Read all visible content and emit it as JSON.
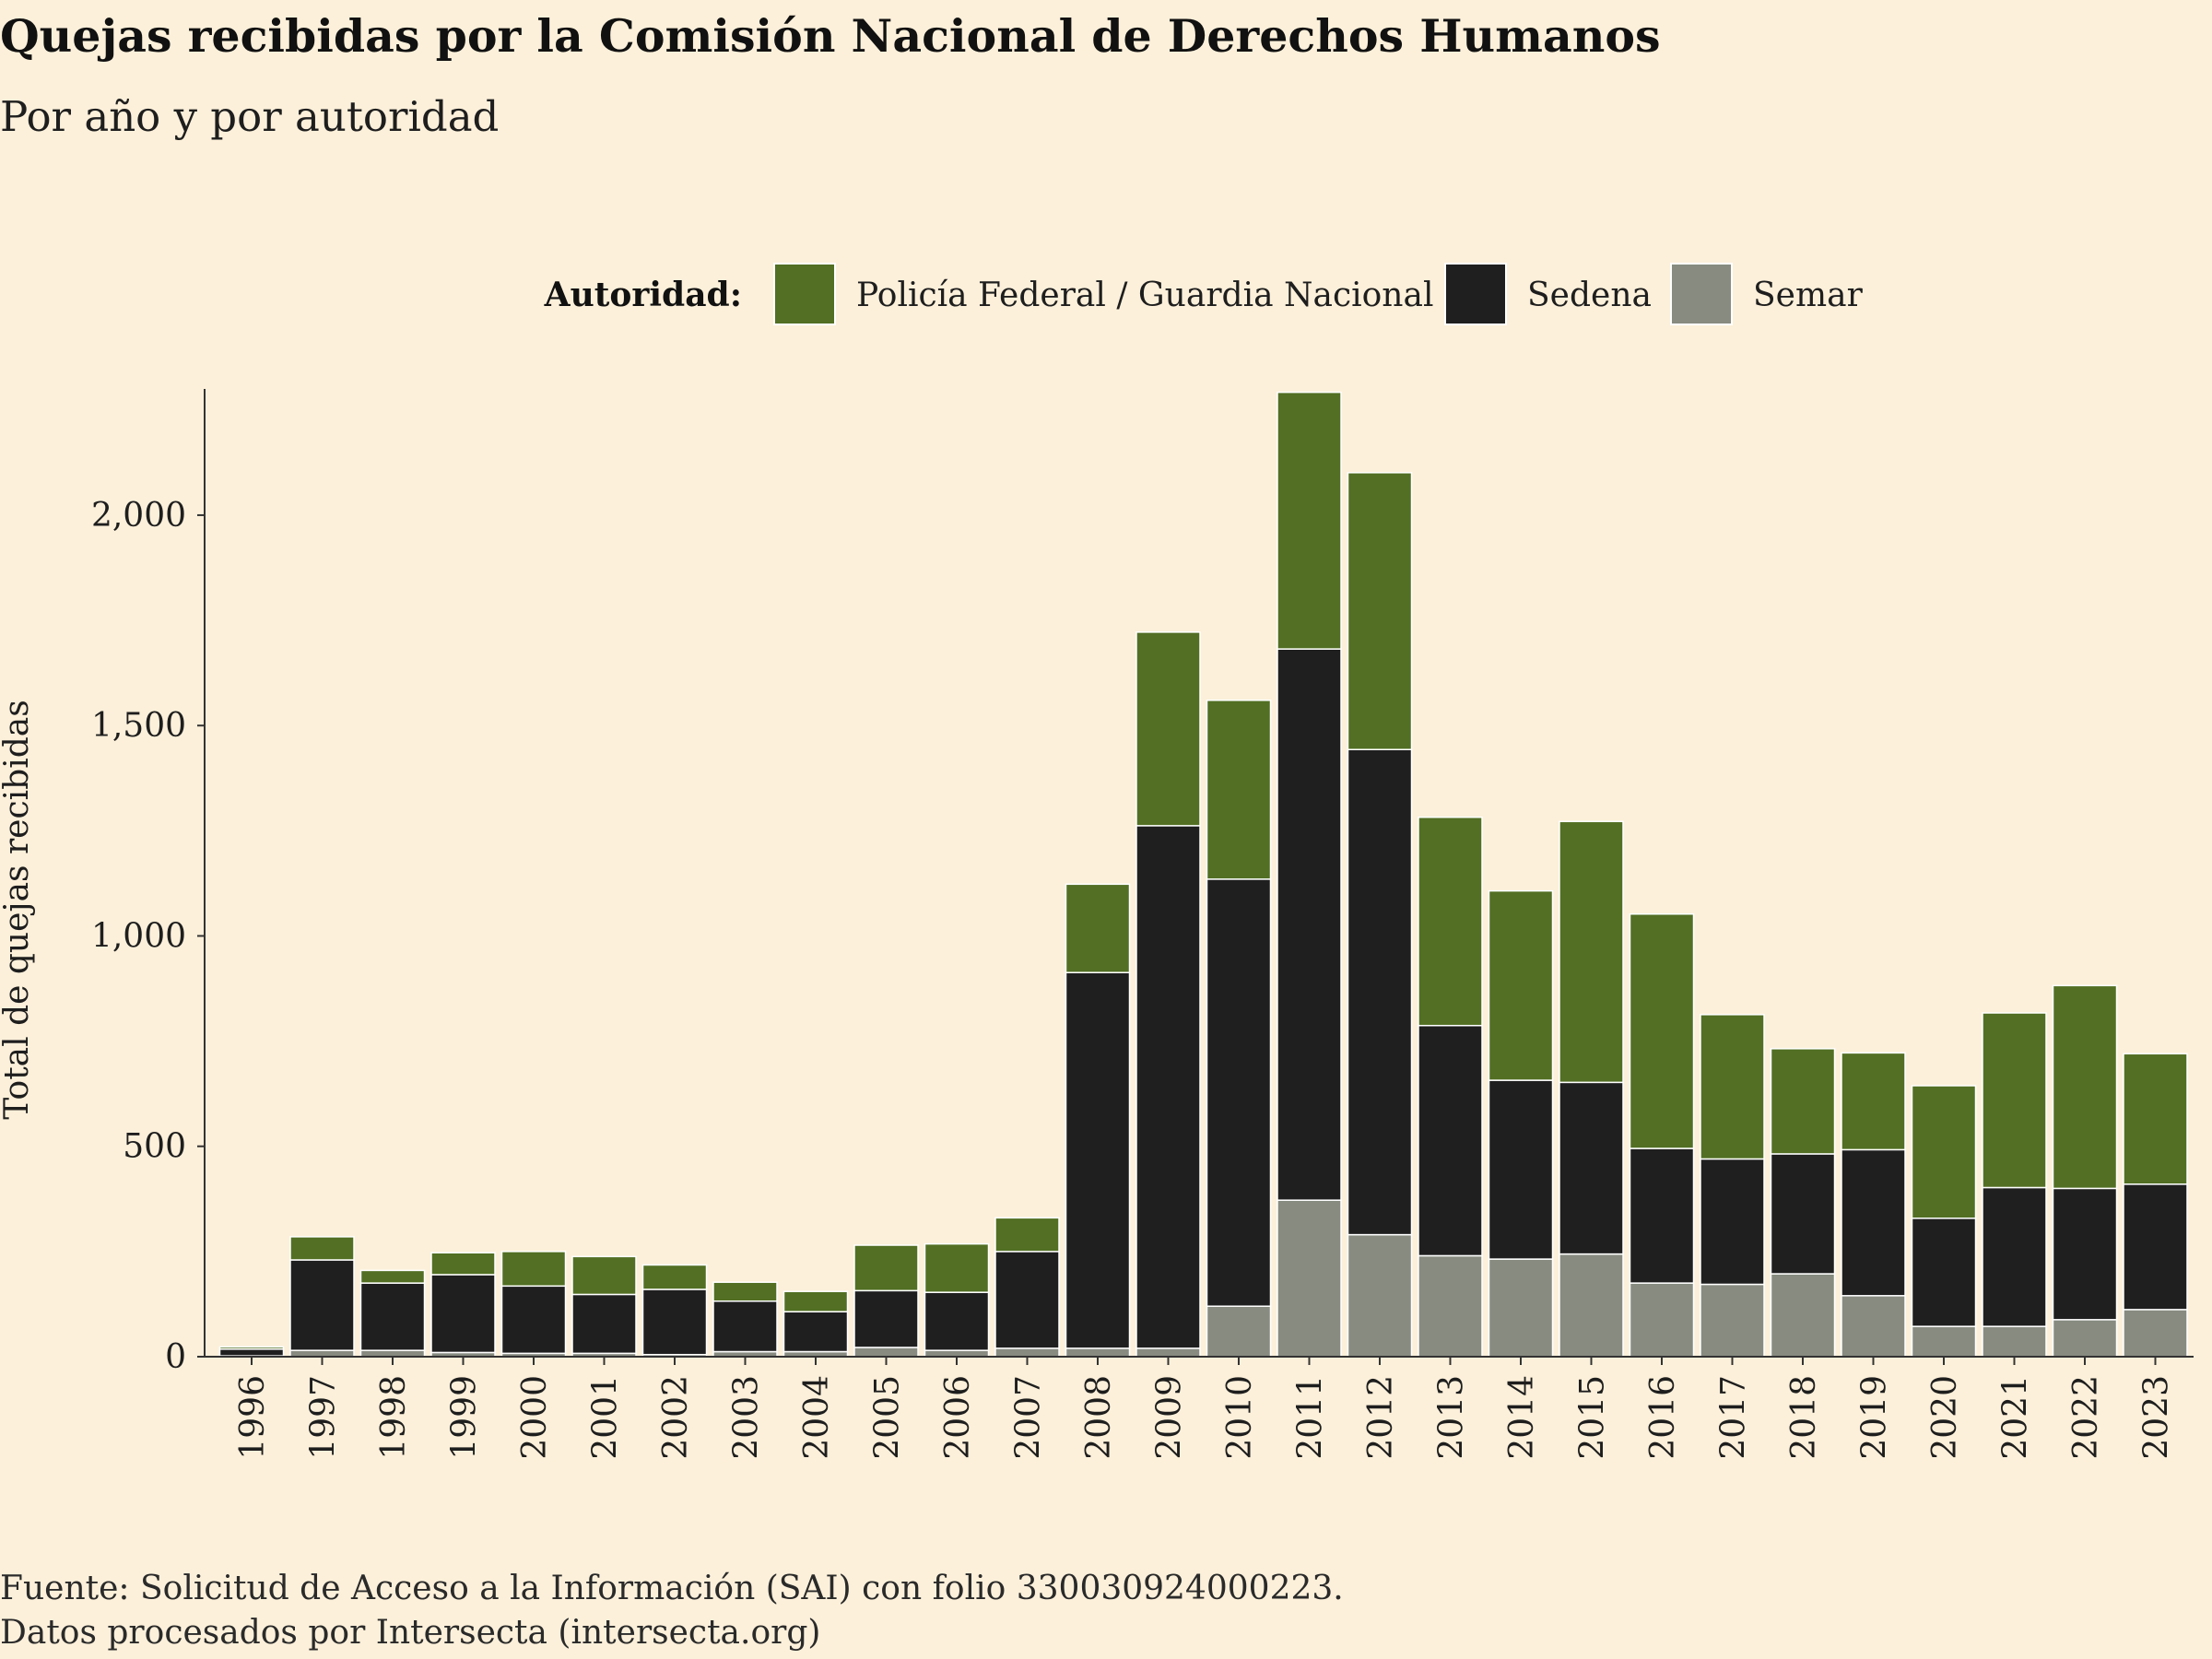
{
  "chart_data": {
    "type": "bar",
    "stacked": true,
    "title": "Quejas recibidas por la Comisión Nacional de Derechos Humanos",
    "subtitle": "Por año y por autoridad",
    "ylabel": "Total de quejas recibidas",
    "xlabel": "",
    "ylim": [
      0,
      2300
    ],
    "yticks": [
      0,
      500,
      1000,
      1500,
      2000
    ],
    "ytick_labels": [
      "0",
      "500",
      "1,000",
      "1,500",
      "2,000"
    ],
    "legend": {
      "title": "Autoridad:",
      "position": "top"
    },
    "categories": [
      "1996",
      "1997",
      "1998",
      "1999",
      "2000",
      "2001",
      "2002",
      "2003",
      "2004",
      "2005",
      "2006",
      "2007",
      "2008",
      "2009",
      "2010",
      "2011",
      "2012",
      "2013",
      "2014",
      "2015",
      "2016",
      "2017",
      "2018",
      "2019",
      "2020",
      "2021",
      "2022",
      "2023"
    ],
    "series": [
      {
        "name": "Semar",
        "color": "#878b80",
        "values": [
          2,
          15,
          15,
          10,
          8,
          8,
          5,
          12,
          12,
          22,
          15,
          20,
          20,
          20,
          120,
          372,
          290,
          240,
          232,
          244,
          175,
          172,
          197,
          145,
          72,
          72,
          88,
          112
        ]
      },
      {
        "name": "Sedena",
        "color": "#1f1f1f",
        "values": [
          16,
          215,
          160,
          185,
          160,
          140,
          155,
          120,
          95,
          135,
          138,
          230,
          893,
          1242,
          1015,
          1310,
          1153,
          547,
          425,
          408,
          320,
          298,
          285,
          347,
          257,
          330,
          312,
          298
        ]
      },
      {
        "name": "Policía Federal / Guardia Nacional",
        "color": "#526f23",
        "values": [
          5,
          55,
          30,
          52,
          82,
          90,
          58,
          45,
          48,
          108,
          115,
          80,
          210,
          460,
          425,
          610,
          658,
          495,
          450,
          620,
          557,
          343,
          250,
          230,
          315,
          415,
          482,
          310
        ]
      }
    ],
    "legend_order": [
      "Policía Federal / Guardia Nacional",
      "Sedena",
      "Semar"
    ],
    "grid": false
  },
  "source": {
    "line1": "Fuente: Solicitud de Acceso a la Información (SAI) con folio 330030924000223.",
    "line2": "Datos procesados por Intersecta (intersecta.org)"
  }
}
